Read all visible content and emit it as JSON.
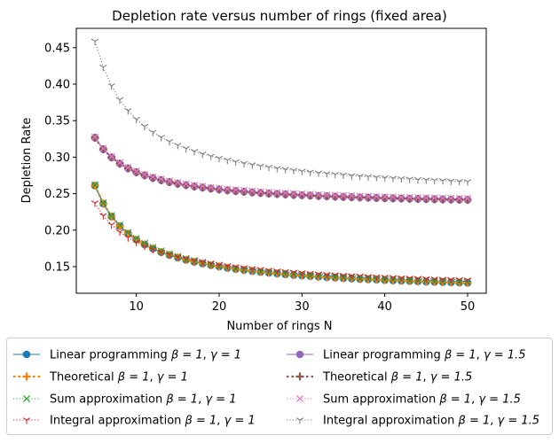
{
  "chart_data": {
    "type": "line",
    "title": "Depletion rate versus number of rings (fixed area)",
    "xlabel": "Number of rings N",
    "ylabel": "Depletion Rate",
    "xlim": [
      2.75,
      52.25
    ],
    "ylim": [
      0.1135,
      0.4765
    ],
    "xticks": [
      10,
      20,
      30,
      40,
      50
    ],
    "yticks": [
      0.15,
      0.2,
      0.25,
      0.3,
      0.35,
      0.4,
      0.45
    ],
    "ytick_labels": [
      "0.15",
      "0.20",
      "0.25",
      "0.30",
      "0.35",
      "0.40",
      "0.45"
    ],
    "grid": false,
    "legend_position": "bottom",
    "x_range": {
      "start": 5,
      "end": 50,
      "step": 1
    },
    "series": [
      {
        "name": "Linear programming β = 1, γ = 1",
        "prefix": "Linear programming ",
        "beta": "β = 1",
        "gamma": "γ = 1",
        "color": "#1f77b4",
        "line": "solid",
        "marker": "circle",
        "model": {
          "a": 0.113,
          "b": 0.74,
          "p": 1
        }
      },
      {
        "name": "Theoretical β = 1, γ = 1",
        "prefix": "Theoretical ",
        "beta": "β = 1",
        "gamma": "γ = 1",
        "color": "#ff7f0e",
        "line": "dotted-thick",
        "marker": "plus",
        "model": {
          "a": 0.113,
          "b": 0.74,
          "p": 1
        }
      },
      {
        "name": "Sum approximation β = 1, γ = 1",
        "prefix": "Sum approximation ",
        "beta": "β = 1",
        "gamma": "γ = 1",
        "color": "#2ca02c",
        "line": "dotted",
        "marker": "x",
        "model": {
          "a": 0.115,
          "b": 0.735,
          "p": 1
        }
      },
      {
        "name": "Integral approximation β = 1, γ = 1",
        "prefix": "Integral approximation ",
        "beta": "β = 1",
        "gamma": "γ = 1",
        "color": "#d62728",
        "line": "dotted",
        "marker": "tri_down",
        "model": {
          "a": 0.113,
          "b": 0.465,
          "p": 0.82
        }
      },
      {
        "name": "Linear programming β = 1, γ = 1.5",
        "prefix": "Linear programming ",
        "beta": "β = 1",
        "gamma": "γ = 1.5",
        "color": "#9467bd",
        "line": "solid",
        "marker": "circle",
        "model": {
          "a": 0.232,
          "b": 0.473,
          "p": 1
        }
      },
      {
        "name": "Theoretical β = 1, γ = 1.5",
        "prefix": "Theoretical ",
        "beta": "β = 1",
        "gamma": "γ = 1.5",
        "color": "#8c564b",
        "line": "dotted-thick",
        "marker": "plus",
        "model": {
          "a": 0.232,
          "b": 0.473,
          "p": 1
        }
      },
      {
        "name": "Sum approximation β = 1, γ = 1.5",
        "prefix": "Sum approximation ",
        "beta": "β = 1",
        "gamma": "γ = 1.5",
        "color": "#e377c2",
        "line": "dotted",
        "marker": "x",
        "model": {
          "a": 0.234,
          "b": 0.468,
          "p": 1
        }
      },
      {
        "name": "Integral approximation β = 1, γ = 1.5",
        "prefix": "Integral approximation ",
        "beta": "β = 1",
        "gamma": "γ = 1.5",
        "color": "#7f7f7f",
        "line": "dotted",
        "marker": "tri_down",
        "model": {
          "a": 0.245,
          "b": 1.07,
          "p": 1
        }
      }
    ]
  }
}
